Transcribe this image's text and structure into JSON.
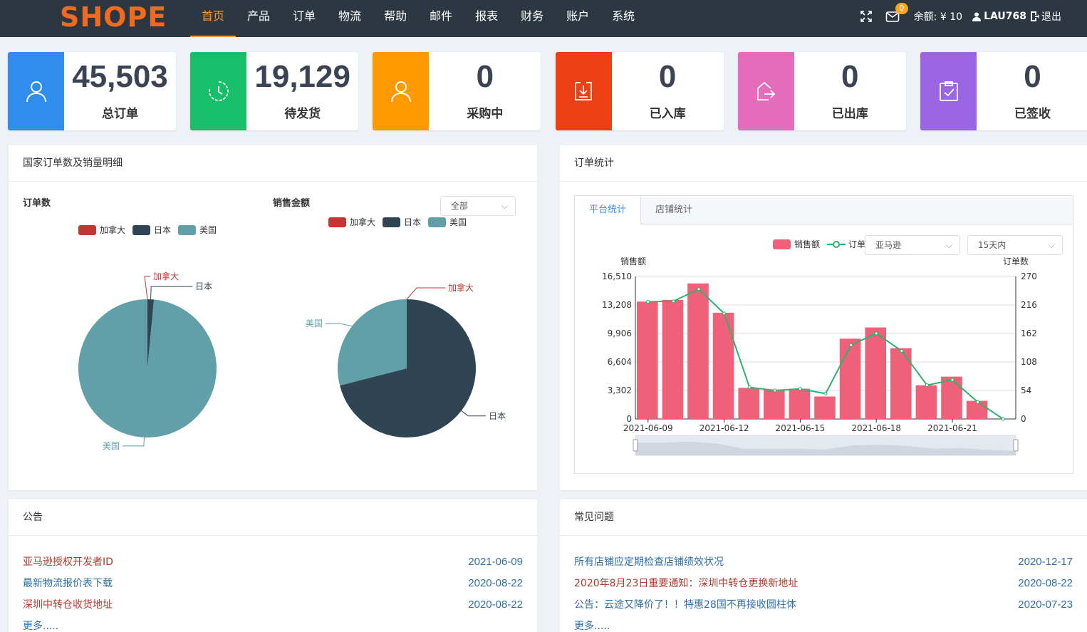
{
  "header": {
    "logo_text": "SHOPE",
    "nav": [
      {
        "label": "首页",
        "active": true
      },
      {
        "label": "产品"
      },
      {
        "label": "订单"
      },
      {
        "label": "物流"
      },
      {
        "label": "帮助"
      },
      {
        "label": "邮件"
      },
      {
        "label": "报表"
      },
      {
        "label": "财务"
      },
      {
        "label": "账户"
      },
      {
        "label": "系统"
      }
    ],
    "mail_badge": "0",
    "balance_label": "余额: ¥ 10",
    "username": "LAU768",
    "logout_label": "退出",
    "icons": [
      "fullscreen-icon",
      "mail-icon",
      "user-icon",
      "logout-icon"
    ]
  },
  "stats": [
    {
      "value": "45,503",
      "label": "总订单",
      "color": "#2e8ded",
      "icon": "user-icon"
    },
    {
      "value": "19,129",
      "label": "待发货",
      "color": "#19be6b",
      "icon": "clock-icon"
    },
    {
      "value": "0",
      "label": "采购中",
      "color": "#ff9900",
      "icon": "user-icon"
    },
    {
      "value": "0",
      "label": "已入库",
      "color": "#ed3f14",
      "icon": "download-icon"
    },
    {
      "value": "0",
      "label": "已出库",
      "color": "#e46cbb",
      "icon": "export-icon"
    },
    {
      "value": "0",
      "label": "已签收",
      "color": "#9a66e4",
      "icon": "clipboard-check-icon"
    }
  ],
  "country_panel": {
    "title": "国家订单数及销量明细",
    "left_sub": "订单数",
    "right_sub": "销售金额",
    "filter_value": "全部",
    "legend": [
      {
        "name": "加拿大",
        "color": "#c23531"
      },
      {
        "name": "日本",
        "color": "#2f4554"
      },
      {
        "name": "美国",
        "color": "#61a0a8"
      }
    ]
  },
  "order_panel": {
    "title": "订单统计",
    "tabs": [
      {
        "label": "平台统计",
        "active": true
      },
      {
        "label": "店铺统计"
      }
    ],
    "platform_select": "亚马逊",
    "range_select": "15天内",
    "legend_sales": "销售额",
    "legend_orders": "订单"
  },
  "notice_panel": {
    "title": "公告",
    "items": [
      {
        "title": "亚马逊授权开发者ID",
        "date": "2021-06-09",
        "color": "#b03a2e"
      },
      {
        "title": "最新物流报价表下载",
        "date": "2020-08-22",
        "color": "#2f6fa8"
      },
      {
        "title": "深圳中转仓收货地址",
        "date": "2020-08-22",
        "color": "#b03a2e"
      }
    ],
    "more": "更多....."
  },
  "faq_panel": {
    "title": "常见问题",
    "items": [
      {
        "title": "所有店铺应定期检查店铺绩效状况",
        "date": "2020-12-17",
        "color": "#2f6fa8"
      },
      {
        "title": "2020年8月23日重要通知：深圳中转仓更换新地址",
        "date": "2020-08-22",
        "color": "#b03a2e"
      },
      {
        "title": "公告：云途又降价了！！特惠28国不再接收圆柱体",
        "date": "2020-07-23",
        "color": "#2f6fa8"
      }
    ],
    "more": "更多....."
  },
  "chart_data": [
    {
      "type": "pie",
      "title": "订单数",
      "labels": [
        "加拿大",
        "日本",
        "美国"
      ],
      "values": [
        0,
        1.5,
        98.5
      ],
      "colors": [
        "#c23531",
        "#2f4554",
        "#61a0a8"
      ]
    },
    {
      "type": "pie",
      "title": "销售金额",
      "labels": [
        "加拿大",
        "日本",
        "美国"
      ],
      "values": [
        0,
        71,
        29
      ],
      "colors": [
        "#c23531",
        "#2f4554",
        "#61a0a8"
      ]
    },
    {
      "type": "bar",
      "categories": [
        "2021-06-09",
        "2021-06-10",
        "2021-06-11",
        "2021-06-12",
        "2021-06-13",
        "2021-06-14",
        "2021-06-15",
        "2021-06-16",
        "2021-06-17",
        "2021-06-18",
        "2021-06-19",
        "2021-06-20",
        "2021-06-21",
        "2021-06-22",
        "2021-06-23"
      ],
      "x_tick_labels": [
        "2021-06-09",
        "2021-06-12",
        "2021-06-15",
        "2021-06-18",
        "2021-06-21"
      ],
      "series": [
        {
          "name": "销售额",
          "type": "bar",
          "axis": "left",
          "color": "#ef6079",
          "values": [
            13600,
            13800,
            15700,
            12300,
            3600,
            3400,
            3500,
            2600,
            9300,
            10600,
            8200,
            3900,
            4900,
            2100,
            0
          ]
        },
        {
          "name": "订单",
          "type": "line",
          "axis": "right",
          "color": "#2db36b",
          "values": [
            222,
            223,
            246,
            200,
            60,
            54,
            57,
            48,
            140,
            162,
            129,
            64,
            74,
            32,
            0
          ]
        }
      ],
      "ylabel": "销售额",
      "ylabel_right": "订单数",
      "ylim": [
        0,
        16510
      ],
      "yticks": [
        "0",
        "3,302",
        "6,604",
        "9,906",
        "13,208",
        "16,510"
      ],
      "ylim_right": [
        0,
        270
      ],
      "yticks_right": [
        "0",
        "54",
        "108",
        "162",
        "216",
        "270"
      ],
      "grid": true,
      "legend": "top-right"
    }
  ]
}
